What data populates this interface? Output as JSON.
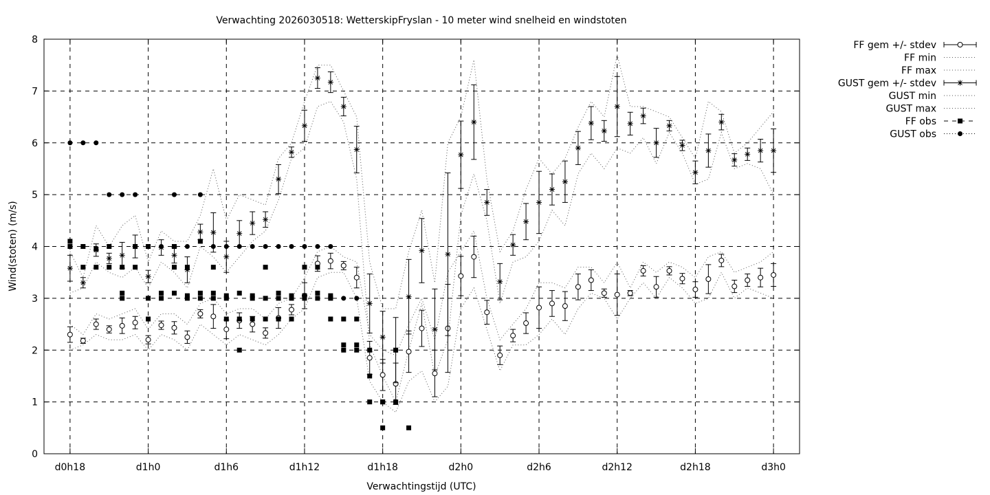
{
  "chart_data": {
    "type": "scatter",
    "title": "Verwachting 2026030518: WetterskipFryslan - 10 meter wind snelheid en windstoten",
    "xlabel": "Verwachtingstijd (UTC)",
    "ylabel": "Wind(stoten) (m/s)",
    "ylim": [
      0,
      8
    ],
    "xlim_hours": [
      -2,
      56
    ],
    "yticks": [
      "0",
      "1",
      "2",
      "3",
      "4",
      "5",
      "6",
      "7",
      "8"
    ],
    "xticks": [
      {
        "h": 0,
        "label": "d0h18"
      },
      {
        "h": 6,
        "label": "d1h0"
      },
      {
        "h": 12,
        "label": "d1h6"
      },
      {
        "h": 18,
        "label": "d1h12"
      },
      {
        "h": 24,
        "label": "d1h18"
      },
      {
        "h": 30,
        "label": "d2h0"
      },
      {
        "h": 36,
        "label": "d2h6"
      },
      {
        "h": 42,
        "label": "d2h12"
      },
      {
        "h": 48,
        "label": "d2h18"
      },
      {
        "h": 54,
        "label": "d3h0"
      }
    ],
    "grid": true,
    "legend_position": "right-outside",
    "legend": [
      "FF gem +/- stdev",
      "FF min",
      "FF max",
      "GUST gem +/- stdev",
      "GUST min",
      "GUST max",
      "FF obs",
      "GUST obs"
    ],
    "ff_gem": {
      "x": [
        0,
        1,
        2,
        3,
        4,
        5,
        6,
        7,
        8,
        9,
        10,
        11,
        12,
        13,
        14,
        15,
        16,
        17,
        18,
        19,
        20,
        21,
        22,
        23,
        24,
        25,
        26,
        27,
        28,
        29,
        30,
        31,
        32,
        33,
        34,
        35,
        36,
        37,
        38,
        39,
        40,
        41,
        42,
        43,
        44,
        45,
        46,
        47,
        48,
        49,
        50,
        51,
        52,
        53,
        54
      ],
      "mean": [
        2.3,
        2.18,
        2.5,
        2.4,
        2.47,
        2.53,
        2.2,
        2.48,
        2.43,
        2.25,
        2.7,
        2.65,
        2.4,
        2.57,
        2.5,
        2.33,
        2.62,
        2.78,
        3.05,
        3.67,
        3.72,
        3.63,
        3.4,
        1.85,
        1.52,
        1.35,
        1.97,
        2.42,
        1.55,
        2.42,
        3.43,
        3.8,
        2.73,
        1.9,
        2.28,
        2.52,
        2.82,
        2.9,
        2.85,
        3.22,
        3.35,
        3.1,
        3.07,
        3.1,
        3.53,
        3.22,
        3.53,
        3.38,
        3.17,
        3.37,
        3.73,
        3.23,
        3.35,
        3.4,
        3.45
      ],
      "stdev": [
        0.15,
        0.05,
        0.1,
        0.07,
        0.15,
        0.12,
        0.08,
        0.08,
        0.12,
        0.12,
        0.08,
        0.23,
        0.18,
        0.15,
        0.15,
        0.1,
        0.2,
        0.1,
        0.25,
        0.15,
        0.15,
        0.08,
        0.2,
        0.32,
        0.3,
        0.4,
        0.4,
        0.35,
        0.45,
        0.85,
        0.38,
        0.4,
        0.23,
        0.18,
        0.12,
        0.2,
        0.4,
        0.25,
        0.28,
        0.25,
        0.2,
        0.08,
        0.4,
        0.05,
        0.1,
        0.2,
        0.08,
        0.1,
        0.15,
        0.28,
        0.12,
        0.12,
        0.12,
        0.18,
        0.22
      ]
    },
    "ff_min": {
      "x": [
        0,
        1,
        2,
        3,
        4,
        5,
        6,
        7,
        8,
        9,
        10,
        11,
        12,
        13,
        14,
        15,
        16,
        17,
        18,
        19,
        20,
        21,
        22,
        23,
        24,
        25,
        26,
        27,
        28,
        29,
        30,
        31,
        32,
        33,
        34,
        35,
        36,
        37,
        38,
        39,
        40,
        41,
        42,
        43,
        44,
        45,
        46,
        47,
        48,
        49,
        50,
        51,
        52,
        53,
        54
      ],
      "y": [
        2.0,
        2.1,
        2.3,
        2.2,
        2.2,
        2.3,
        2.0,
        2.3,
        2.2,
        2.0,
        2.5,
        2.3,
        2.1,
        2.3,
        2.2,
        2.1,
        2.3,
        2.6,
        2.8,
        3.4,
        3.5,
        3.5,
        3.0,
        1.4,
        1.0,
        0.8,
        1.4,
        1.6,
        1.0,
        1.3,
        2.8,
        3.2,
        2.4,
        1.6,
        2.1,
        2.1,
        2.3,
        2.6,
        2.3,
        2.8,
        3.1,
        3.0,
        2.6,
        3.0,
        3.3,
        3.0,
        3.4,
        3.2,
        2.9,
        3.0,
        3.5,
        3.0,
        3.2,
        3.1,
        3.0
      ]
    },
    "ff_max": {
      "x": [
        0,
        1,
        2,
        3,
        4,
        5,
        6,
        7,
        8,
        9,
        10,
        11,
        12,
        13,
        14,
        15,
        16,
        17,
        18,
        19,
        20,
        21,
        22,
        23,
        24,
        25,
        26,
        27,
        28,
        29,
        30,
        31,
        32,
        33,
        34,
        35,
        36,
        37,
        38,
        39,
        40,
        41,
        42,
        43,
        44,
        45,
        46,
        47,
        48,
        49,
        50,
        51,
        52,
        53,
        54
      ],
      "y": [
        2.5,
        2.3,
        2.7,
        2.6,
        2.7,
        2.8,
        2.4,
        2.7,
        2.7,
        2.5,
        2.9,
        3.0,
        2.7,
        2.8,
        2.8,
        2.6,
        2.9,
        3.0,
        3.4,
        3.9,
        4.0,
        3.8,
        3.7,
        2.3,
        2.0,
        1.9,
        2.5,
        3.0,
        2.2,
        3.5,
        3.9,
        4.3,
        3.0,
        2.2,
        2.5,
        2.8,
        3.3,
        3.3,
        3.2,
        3.6,
        3.6,
        3.3,
        3.7,
        3.2,
        3.7,
        3.5,
        3.7,
        3.6,
        3.4,
        3.8,
        3.9,
        3.5,
        3.6,
        3.7,
        3.9
      ]
    },
    "gust_gem": {
      "x": [
        0,
        1,
        2,
        3,
        4,
        5,
        6,
        7,
        8,
        9,
        10,
        11,
        12,
        13,
        14,
        15,
        16,
        17,
        18,
        19,
        20,
        21,
        22,
        23,
        24,
        25,
        26,
        27,
        28,
        29,
        30,
        31,
        32,
        33,
        34,
        35,
        36,
        37,
        38,
        39,
        40,
        41,
        42,
        43,
        44,
        45,
        46,
        47,
        48,
        49,
        50,
        51,
        52,
        53,
        54
      ],
      "mean": [
        3.58,
        3.3,
        3.93,
        3.77,
        3.83,
        4.0,
        3.42,
        3.98,
        3.83,
        3.55,
        4.28,
        4.27,
        3.8,
        4.25,
        4.45,
        4.52,
        5.3,
        5.82,
        6.33,
        7.25,
        7.17,
        6.7,
        5.87,
        2.9,
        2.25,
        2.0,
        3.03,
        3.92,
        2.4,
        3.85,
        5.77,
        6.4,
        4.85,
        3.32,
        4.03,
        4.48,
        4.85,
        5.1,
        5.25,
        5.9,
        6.38,
        6.23,
        6.7,
        6.37,
        6.52,
        6.0,
        6.33,
        5.95,
        5.43,
        5.85,
        6.4,
        5.67,
        5.78,
        5.85,
        5.85
      ],
      "stdev": [
        0.25,
        0.1,
        0.12,
        0.1,
        0.25,
        0.22,
        0.12,
        0.15,
        0.15,
        0.25,
        0.15,
        0.38,
        0.3,
        0.25,
        0.22,
        0.15,
        0.28,
        0.1,
        0.3,
        0.2,
        0.2,
        0.18,
        0.45,
        0.57,
        0.5,
        0.63,
        0.72,
        0.62,
        0.78,
        1.57,
        0.65,
        0.72,
        0.25,
        0.35,
        0.2,
        0.35,
        0.6,
        0.3,
        0.4,
        0.32,
        0.32,
        0.2,
        0.58,
        0.22,
        0.15,
        0.28,
        0.1,
        0.1,
        0.22,
        0.32,
        0.15,
        0.12,
        0.12,
        0.22,
        0.42
      ]
    },
    "gust_min": {
      "x": [
        0,
        1,
        2,
        3,
        4,
        5,
        6,
        7,
        8,
        9,
        10,
        11,
        12,
        13,
        14,
        15,
        16,
        17,
        18,
        19,
        20,
        21,
        22,
        23,
        24,
        25,
        26,
        27,
        28,
        29,
        30,
        31,
        32,
        33,
        34,
        35,
        36,
        37,
        38,
        39,
        40,
        41,
        42,
        43,
        44,
        45,
        46,
        47,
        48,
        49,
        50,
        51,
        52,
        53,
        54
      ],
      "y": [
        3.1,
        3.2,
        3.7,
        3.5,
        3.4,
        3.6,
        3.2,
        3.7,
        3.5,
        3.2,
        4.0,
        3.8,
        3.5,
        3.8,
        4.1,
        4.3,
        4.9,
        5.7,
        5.9,
        6.7,
        6.8,
        6.4,
        5.3,
        2.1,
        1.5,
        1.0,
        2.0,
        2.9,
        1.5,
        2.2,
        4.6,
        5.4,
        4.5,
        2.9,
        3.7,
        3.8,
        4.1,
        4.7,
        4.4,
        5.4,
        5.8,
        5.5,
        5.9,
        5.8,
        6.1,
        5.6,
        6.2,
        5.8,
        5.2,
        5.3,
        6.2,
        5.5,
        5.6,
        5.5,
        5.0
      ]
    },
    "gust_max": {
      "x": [
        0,
        1,
        2,
        3,
        4,
        5,
        6,
        7,
        8,
        9,
        10,
        11,
        12,
        13,
        14,
        15,
        16,
        17,
        18,
        19,
        20,
        21,
        22,
        23,
        24,
        25,
        26,
        27,
        28,
        29,
        30,
        31,
        32,
        33,
        34,
        35,
        36,
        37,
        38,
        39,
        40,
        41,
        42,
        43,
        44,
        45,
        46,
        47,
        48,
        49,
        50,
        51,
        52,
        53,
        54
      ],
      "y": [
        3.9,
        3.4,
        4.4,
        4.0,
        4.4,
        4.6,
        3.7,
        4.3,
        4.1,
        4.1,
        4.6,
        5.5,
        4.5,
        5.0,
        4.9,
        4.8,
        5.7,
        6.0,
        6.8,
        7.5,
        7.5,
        7.0,
        6.5,
        3.7,
        2.8,
        2.8,
        3.9,
        4.7,
        3.3,
        6.0,
        6.5,
        7.6,
        5.3,
        3.9,
        4.3,
        5.1,
        5.7,
        5.4,
        5.7,
        6.3,
        6.8,
        6.5,
        7.7,
        6.7,
        6.7,
        6.6,
        6.5,
        6.1,
        5.7,
        6.8,
        6.6,
        5.8,
        6.0,
        6.3,
        6.6
      ]
    },
    "ff_obs": {
      "x": [
        0,
        0,
        1,
        1,
        2,
        2,
        3,
        3,
        4,
        4,
        4,
        5,
        5,
        6,
        6,
        6,
        7,
        7,
        8,
        8,
        8,
        9,
        9,
        9,
        10,
        10,
        10,
        11,
        11,
        11,
        12,
        12,
        12,
        13,
        13,
        13,
        14,
        14,
        14,
        15,
        15,
        15,
        16,
        16,
        16,
        17,
        17,
        17,
        18,
        18,
        18,
        19,
        19,
        19,
        20,
        20,
        20,
        21,
        21,
        21,
        22,
        22,
        22,
        23,
        23,
        23,
        24,
        24,
        24,
        25,
        25,
        26
      ],
      "y": [
        4.1,
        4.0,
        4.0,
        3.6,
        3.95,
        3.6,
        4.0,
        3.6,
        3.6,
        3.1,
        3.0,
        4.0,
        3.6,
        3.0,
        2.6,
        4.0,
        3.1,
        3.0,
        4.0,
        3.6,
        3.1,
        3.6,
        3.05,
        3.0,
        4.1,
        3.1,
        3.0,
        3.6,
        3.1,
        3.0,
        2.6,
        3.05,
        3.0,
        2.6,
        3.1,
        2.0,
        2.6,
        3.0,
        3.05,
        3.6,
        3.0,
        2.6,
        3.1,
        3.0,
        2.6,
        3.05,
        3.0,
        2.6,
        3.6,
        3.05,
        3.0,
        3.6,
        3.1,
        3.0,
        3.05,
        3.0,
        2.6,
        2.6,
        2.1,
        2.0,
        2.6,
        2.1,
        2.0,
        2.0,
        1.5,
        1.0,
        1.0,
        0.5,
        1.0,
        2.0,
        1.0,
        0.5
      ]
    },
    "gust_obs": {
      "x": [
        0,
        1,
        2,
        3,
        4,
        5,
        6,
        7,
        8,
        9,
        10,
        11,
        12,
        13,
        14,
        15,
        16,
        17,
        18,
        19,
        20,
        21,
        22,
        23,
        24,
        25
      ],
      "y": [
        6.0,
        6.0,
        6.0,
        5.0,
        5.0,
        5.0,
        4.0,
        4.0,
        5.0,
        4.0,
        5.0,
        4.0,
        4.0,
        4.0,
        4.0,
        4.0,
        4.0,
        4.0,
        4.0,
        4.0,
        4.0,
        3.0,
        3.0,
        2.0,
        1.0,
        1.0
      ]
    }
  }
}
